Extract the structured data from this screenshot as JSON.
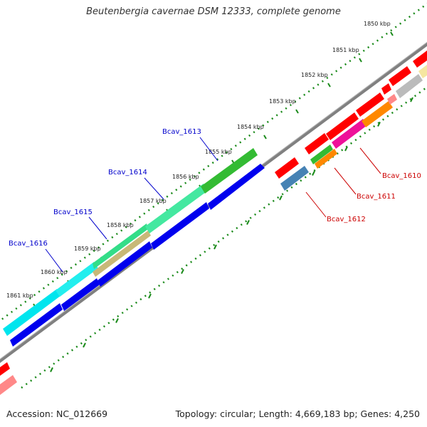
{
  "title": "Beutenbergia cavernae DSM 12333, complete genome",
  "footer": {
    "accession": "Accession: NC_012669",
    "summary": "Topology: circular; Length: 4,669,183 bp; Genes: 4,250"
  },
  "scale_ticks": [
    {
      "label": "1850 kbp"
    },
    {
      "label": "1851 kbp"
    },
    {
      "label": "1852 kbp"
    },
    {
      "label": "1853 kbp"
    },
    {
      "label": "1854 kbp"
    },
    {
      "label": "1855 kbp"
    },
    {
      "label": "1856 kbp"
    },
    {
      "label": "1857 kbp"
    },
    {
      "label": "1858 kbp"
    },
    {
      "label": "1859 kbp"
    },
    {
      "label": "1860 kbp"
    },
    {
      "label": "1861 kbp"
    }
  ],
  "gene_labels": [
    {
      "text": "Bcav_1613",
      "color": "#0000cc"
    },
    {
      "text": "Bcav_1614",
      "color": "#0000cc"
    },
    {
      "text": "Bcav_1615",
      "color": "#0000cc"
    },
    {
      "text": "Bcav_1616",
      "color": "#0000cc"
    },
    {
      "text": "Bcav_1610",
      "color": "#cc0000"
    },
    {
      "text": "Bcav_1611",
      "color": "#cc0000"
    },
    {
      "text": "Bcav_1612",
      "color": "#cc0000"
    }
  ],
  "colors": {
    "backbone": "#808080",
    "tick_marks": "#1a8a1a",
    "gene_blue": "#0000ee",
    "gene_red": "#ff0000",
    "gene_cyan": "#00e5ee",
    "gene_green": "#33bb33",
    "gene_seagreen": "#33dd88",
    "gene_khaki": "#c8b878",
    "gene_magenta": "#ee1199",
    "gene_orange": "#ff8800",
    "gene_steelblue": "#4682b4",
    "gene_grey": "#bbbbbb",
    "gene_pink": "#ff8888",
    "gene_yellow": "#f5e6a0"
  }
}
